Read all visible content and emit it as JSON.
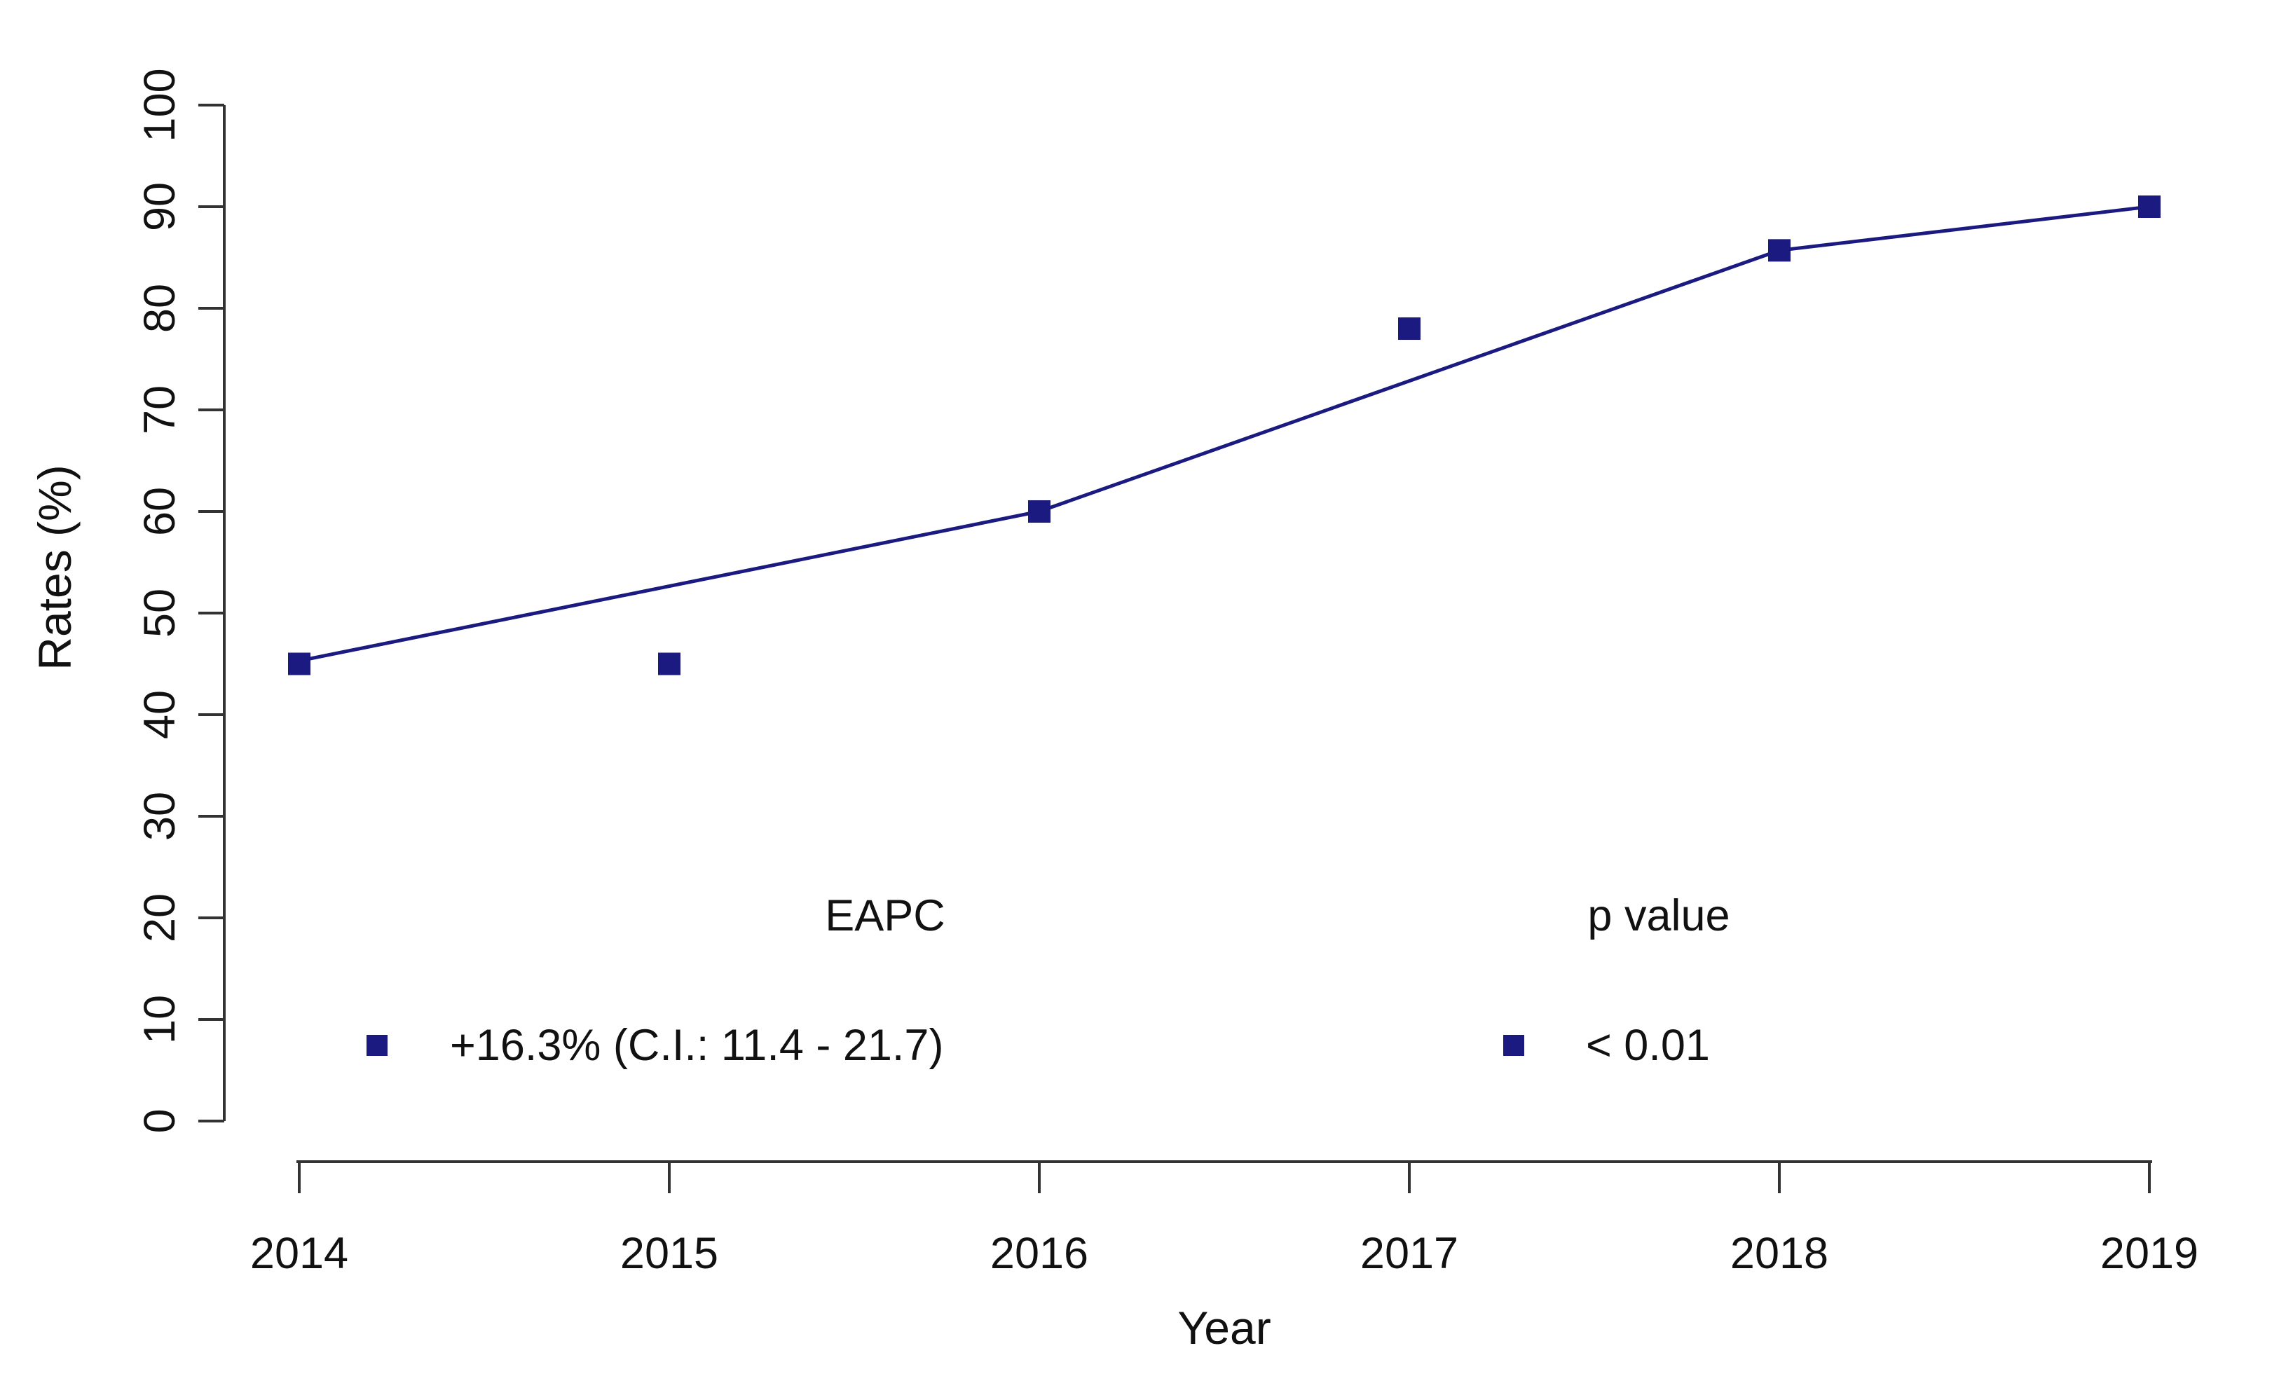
{
  "figure": {
    "background": "#ffffff",
    "text_color": "#111111",
    "axis_color": "#333333"
  },
  "chart_data": {
    "type": "scatter",
    "title": "",
    "xlabel": "Year",
    "ylabel": "Rates (%)",
    "xlim": [
      2014,
      2019
    ],
    "ylim": [
      0,
      100
    ],
    "x_ticks": [
      "2014",
      "2015",
      "2016",
      "2017",
      "2018",
      "2019"
    ],
    "y_ticks": [
      "0",
      "10",
      "20",
      "30",
      "40",
      "50",
      "60",
      "70",
      "80",
      "90",
      "100"
    ],
    "grid": "off",
    "marker": "filled-square",
    "marker_color": "#1a1a80",
    "line_color": "#1a1a80",
    "series": [
      {
        "name": "observed-rates",
        "type": "scatter",
        "points": [
          {
            "x": 2014,
            "y": 45
          },
          {
            "x": 2015,
            "y": 45
          },
          {
            "x": 2016,
            "y": 60
          },
          {
            "x": 2017,
            "y": 78
          },
          {
            "x": 2018,
            "y": 85.7
          },
          {
            "x": 2019,
            "y": 90
          }
        ]
      },
      {
        "name": "eapc-trend-line",
        "type": "line",
        "points": [
          {
            "x": 2014,
            "y": 45.3
          },
          {
            "x": 2016,
            "y": 60
          },
          {
            "x": 2018,
            "y": 85.7
          },
          {
            "x": 2019,
            "y": 90
          }
        ]
      }
    ],
    "annotations": {
      "eapc_header": "EAPC",
      "eapc_value": "+16.3% (C.I.: 11.4 - 21.7)",
      "pvalue_header": "p value",
      "pvalue_value": "< 0.01"
    },
    "legend_position": "inside-bottom"
  }
}
